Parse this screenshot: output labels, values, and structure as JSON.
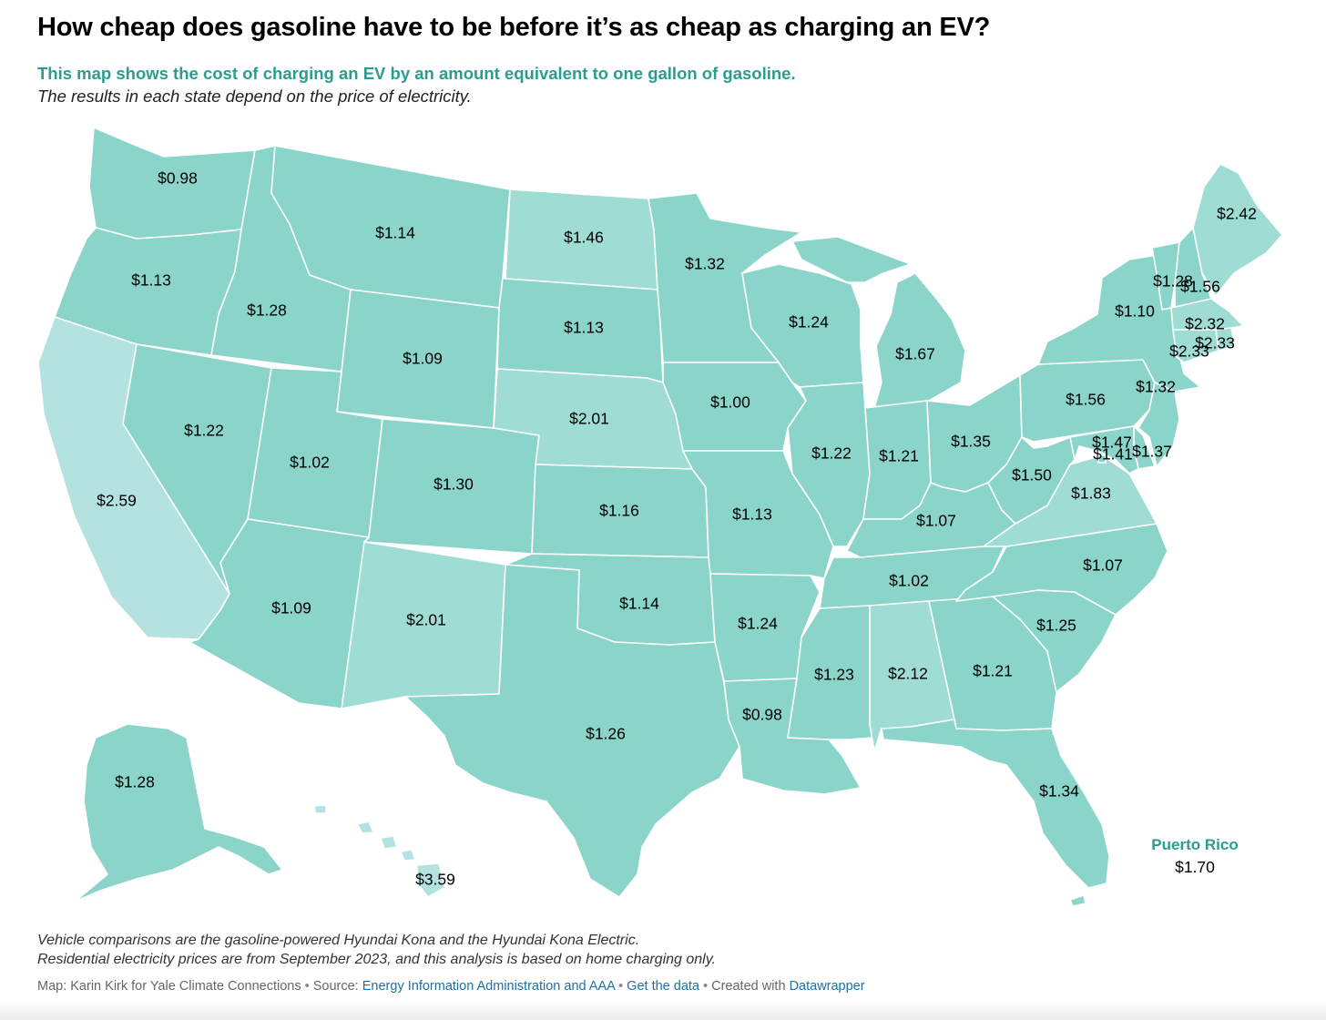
{
  "header": {
    "title": "How cheap does gasoline have to be before it’s as cheap as charging an EV?",
    "subtitle": "This map shows the cost of charging an EV by an amount equivalent to one gallon of gasoline.",
    "note": "The results in each state depend on the price of electricity."
  },
  "colors": {
    "dark": "#8ad4c9",
    "mid": "#9fdcd4",
    "light": "#b3e2e1",
    "accent": "#2a9d8f",
    "link": "#1d6fa5"
  },
  "states": [
    {
      "id": "WA",
      "value": "$0.98",
      "shade": "dark"
    },
    {
      "id": "OR",
      "value": "$1.13",
      "shade": "dark"
    },
    {
      "id": "CA",
      "value": "$2.59",
      "shade": "light"
    },
    {
      "id": "ID",
      "value": "$1.28",
      "shade": "dark"
    },
    {
      "id": "NV",
      "value": "$1.22",
      "shade": "dark"
    },
    {
      "id": "MT",
      "value": "$1.14",
      "shade": "dark"
    },
    {
      "id": "WY",
      "value": "$1.09",
      "shade": "dark"
    },
    {
      "id": "UT",
      "value": "$1.02",
      "shade": "dark"
    },
    {
      "id": "AZ",
      "value": "$1.09",
      "shade": "dark"
    },
    {
      "id": "CO",
      "value": "$1.30",
      "shade": "dark"
    },
    {
      "id": "NM",
      "value": "$2.01",
      "shade": "mid"
    },
    {
      "id": "ND",
      "value": "$1.46",
      "shade": "mid"
    },
    {
      "id": "SD",
      "value": "$1.13",
      "shade": "dark"
    },
    {
      "id": "NE",
      "value": "$2.01",
      "shade": "mid"
    },
    {
      "id": "KS",
      "value": "$1.16",
      "shade": "dark"
    },
    {
      "id": "OK",
      "value": "$1.14",
      "shade": "dark"
    },
    {
      "id": "TX",
      "value": "$1.26",
      "shade": "dark"
    },
    {
      "id": "MN",
      "value": "$1.32",
      "shade": "dark"
    },
    {
      "id": "IA",
      "value": "$1.00",
      "shade": "dark"
    },
    {
      "id": "MO",
      "value": "$1.13",
      "shade": "dark"
    },
    {
      "id": "AR",
      "value": "$1.24",
      "shade": "dark"
    },
    {
      "id": "LA",
      "value": "$0.98",
      "shade": "dark"
    },
    {
      "id": "WI",
      "value": "$1.24",
      "shade": "dark"
    },
    {
      "id": "MI",
      "value": "$1.67",
      "shade": "dark"
    },
    {
      "id": "IL",
      "value": "$1.22",
      "shade": "dark"
    },
    {
      "id": "IN",
      "value": "$1.21",
      "shade": "dark"
    },
    {
      "id": "OH",
      "value": "$1.35",
      "shade": "dark"
    },
    {
      "id": "KY",
      "value": "$1.07",
      "shade": "dark"
    },
    {
      "id": "TN",
      "value": "$1.02",
      "shade": "dark"
    },
    {
      "id": "MS",
      "value": "$1.23",
      "shade": "dark"
    },
    {
      "id": "AL",
      "value": "$2.12",
      "shade": "mid"
    },
    {
      "id": "GA",
      "value": "$1.21",
      "shade": "dark"
    },
    {
      "id": "FL",
      "value": "$1.34",
      "shade": "dark"
    },
    {
      "id": "SC",
      "value": "$1.25",
      "shade": "dark"
    },
    {
      "id": "NC",
      "value": "$1.07",
      "shade": "dark"
    },
    {
      "id": "VA",
      "value": "$1.83",
      "shade": "mid"
    },
    {
      "id": "WV",
      "value": "$1.50",
      "shade": "dark"
    },
    {
      "id": "PA",
      "value": "$1.56",
      "shade": "dark"
    },
    {
      "id": "NY",
      "value": "$1.10",
      "shade": "dark"
    },
    {
      "id": "VT",
      "value": "$1.28",
      "shade": "dark"
    },
    {
      "id": "NH",
      "value": "$1.56",
      "shade": "dark"
    },
    {
      "id": "ME",
      "value": "$2.42",
      "shade": "mid"
    },
    {
      "id": "MA",
      "value": "$2.32",
      "shade": "mid"
    },
    {
      "id": "RI",
      "value": "$2.33",
      "shade": "mid"
    },
    {
      "id": "CT",
      "value": "$2.33",
      "shade": "mid"
    },
    {
      "id": "NJ",
      "value": "$1.32",
      "shade": "dark"
    },
    {
      "id": "MD",
      "value": "$1.47",
      "shade": "dark"
    },
    {
      "id": "DE",
      "value": "$1.37",
      "shade": "dark"
    },
    {
      "id": "DC",
      "value": "$1.41",
      "shade": "dark"
    },
    {
      "id": "AK",
      "value": "$1.28",
      "shade": "dark"
    },
    {
      "id": "HI",
      "value": "$3.59",
      "shade": "light"
    }
  ],
  "puerto_rico": {
    "name": "Puerto Rico",
    "value": "$1.70"
  },
  "notes": {
    "line1": "Vehicle comparisons are the gasoline-powered Hyundai Kona and the Hyundai Kona Electric.",
    "line2": "Residential electricity prices are from September 2023, and this analysis is based on home charging only."
  },
  "footer": {
    "credit": "Map: Karin Kirk for Yale Climate Connections",
    "source_prefix": "Source:",
    "source_link": "Energy Information Administration and AAA",
    "data_link": "Get the data",
    "created_prefix": "Created with",
    "tool_link": "Datawrapper",
    "bullet": "•"
  }
}
